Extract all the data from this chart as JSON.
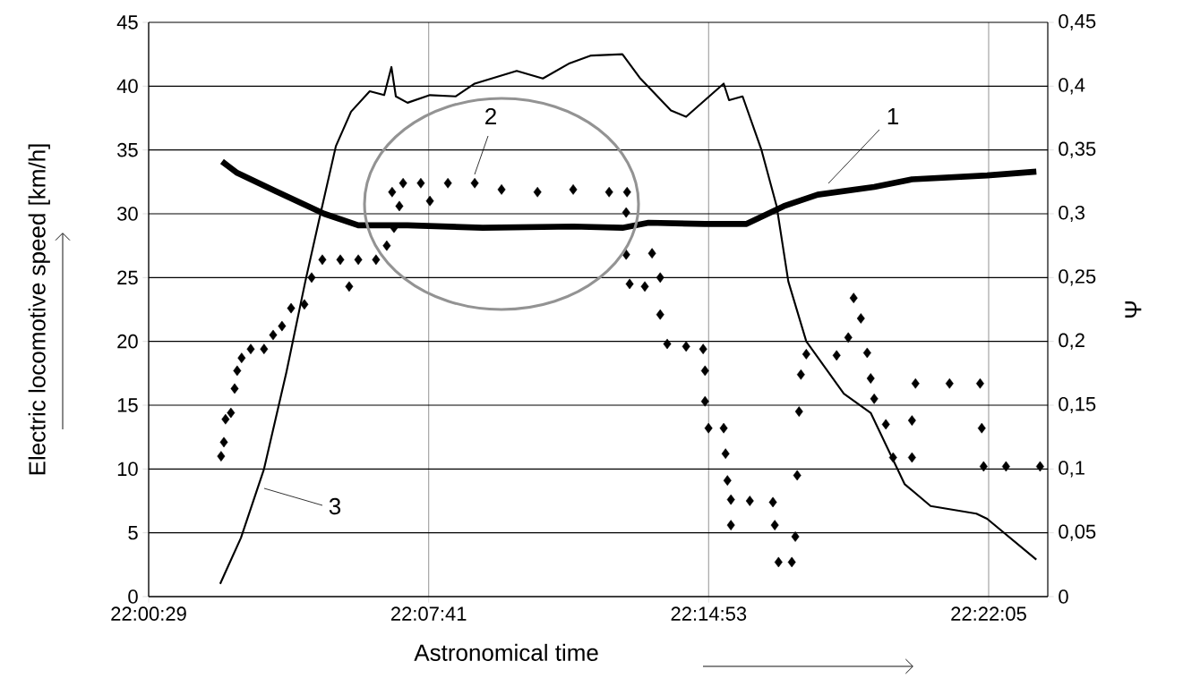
{
  "chart_data": {
    "type": "line",
    "xlabel": "Astronomical time",
    "ylabel": "Electric locomotive speed [km/h]",
    "y2label": "Ψ",
    "xlim": [
      22.00806,
      22.3934
    ],
    "xticks": [
      {
        "value": 22.00806,
        "label": "22:00:29"
      },
      {
        "value": 22.12806,
        "label": "22:07:41"
      },
      {
        "value": 22.24806,
        "label": "22:14:53"
      },
      {
        "value": 22.36806,
        "label": "22:22:05"
      }
    ],
    "ylim": [
      0,
      45
    ],
    "yticks": [
      0,
      5,
      10,
      15,
      20,
      25,
      30,
      35,
      40,
      45
    ],
    "y2lim": [
      0,
      0.45
    ],
    "y2ticks": [
      0,
      {
        "value": 0.05,
        "label": "0,05"
      },
      {
        "value": 0.1,
        "label": "0,1"
      },
      {
        "value": 0.15,
        "label": "0,15"
      },
      {
        "value": 0.2,
        "label": "0,2"
      },
      {
        "value": 0.25,
        "label": "0,25"
      },
      {
        "value": 0.3,
        "label": "0,3"
      },
      {
        "value": 0.35,
        "label": "0,35"
      },
      {
        "value": 0.4,
        "label": "0,4"
      },
      {
        "value": 0.45,
        "label": "0,45"
      }
    ],
    "grid": true,
    "series": [
      {
        "color": "#000000",
        "axis": "y2",
        "x": [
          22.0395,
          22.046,
          22.0621,
          22.0833,
          22.0979,
          22.119,
          22.1512,
          22.19,
          22.2111,
          22.2223,
          22.2465,
          22.2641,
          22.2803,
          22.2948,
          22.319,
          22.3352,
          22.3674,
          22.3885
        ],
        "values": [
          0.341,
          0.332,
          0.318,
          0.3,
          0.291,
          0.291,
          0.289,
          0.29,
          0.289,
          0.293,
          0.292,
          0.292,
          0.306,
          0.315,
          0.321,
          0.327,
          0.33,
          0.333
        ]
      },
      {
        "color": "#000000",
        "axis": "y2",
        "type": "scatter",
        "marker": "diamond",
        "x": [
          22.0391,
          22.0403,
          22.041,
          22.0433,
          22.0449,
          22.046,
          22.0479,
          22.0518,
          22.0575,
          22.0614,
          22.0652,
          22.0691,
          22.0748,
          22.0779,
          22.0825,
          22.0902,
          22.094,
          22.0979,
          22.1055,
          22.1101,
          22.1132,
          22.1124,
          22.1155,
          22.1171,
          22.1247,
          22.1286,
          22.1363,
          22.1478,
          22.1593,
          22.1747,
          22.19,
          22.2054,
          22.2131,
          22.2127,
          22.2127,
          22.2142,
          22.2207,
          22.2238,
          22.2273,
          22.2273,
          22.2303,
          22.2384,
          22.2457,
          22.2465,
          22.2465,
          22.248,
          22.2545,
          22.2553,
          22.2561,
          22.2576,
          22.2576,
          22.2657,
          22.2756,
          22.2764,
          22.278,
          22.2837,
          22.2852,
          22.286,
          22.2868,
          22.2876,
          22.2899,
          22.3029,
          22.3079,
          22.3102,
          22.3133,
          22.316,
          22.3175,
          22.319,
          22.324,
          22.3271,
          22.3352,
          22.3352,
          22.3367,
          22.3513,
          22.3644,
          22.3651,
          22.3659,
          22.3755,
          22.3901
        ],
        "values": [
          0.11,
          0.121,
          0.139,
          0.144,
          0.163,
          0.177,
          0.187,
          0.194,
          0.194,
          0.205,
          0.212,
          0.226,
          0.229,
          0.25,
          0.264,
          0.264,
          0.243,
          0.264,
          0.264,
          0.275,
          0.289,
          0.317,
          0.306,
          0.324,
          0.324,
          0.31,
          0.324,
          0.324,
          0.319,
          0.317,
          0.319,
          0.317,
          0.317,
          0.301,
          0.268,
          0.245,
          0.243,
          0.269,
          0.25,
          0.221,
          0.198,
          0.196,
          0.194,
          0.177,
          0.153,
          0.132,
          0.132,
          0.112,
          0.091,
          0.076,
          0.056,
          0.075,
          0.074,
          0.056,
          0.027,
          0.027,
          0.047,
          0.095,
          0.145,
          0.174,
          0.19,
          0.189,
          0.203,
          0.234,
          0.218,
          0.191,
          0.171,
          0.155,
          0.135,
          0.109,
          0.109,
          0.138,
          0.167,
          0.167,
          0.167,
          0.132,
          0.102,
          0.102,
          0.102
        ]
      },
      {
        "color": "#000000",
        "x": [
          22.0387,
          22.0476,
          22.0575,
          22.0671,
          22.0752,
          22.0817,
          22.0883,
          22.0948,
          22.1028,
          22.109,
          22.1121,
          22.114,
          22.119,
          22.1286,
          22.1397,
          22.1478,
          22.1658,
          22.177,
          22.1885,
          22.1977,
          22.2111,
          22.2188,
          22.2319,
          22.2384,
          22.2545,
          22.2568,
          22.2626,
          22.2707,
          22.2772,
          22.2822,
          22.2899,
          22.306,
          22.3175,
          22.3321,
          22.3432,
          22.3628,
          22.3674,
          22.3885
        ],
        "values": [
          1.0,
          4.6,
          10,
          17.6,
          24.7,
          30,
          35.3,
          38,
          39.6,
          39.3,
          41.5,
          39.2,
          38.7,
          39.3,
          39.2,
          40.2,
          41.2,
          40.6,
          41.8,
          42.4,
          42.5,
          40.6,
          38.1,
          37.6,
          40.2,
          38.9,
          39.2,
          35,
          30.6,
          24.7,
          20,
          15.9,
          14.4,
          8.8,
          7.1,
          6.5,
          6.1,
          2.9
        ]
      }
    ],
    "annotations": [
      "1",
      "2",
      "3"
    ]
  }
}
